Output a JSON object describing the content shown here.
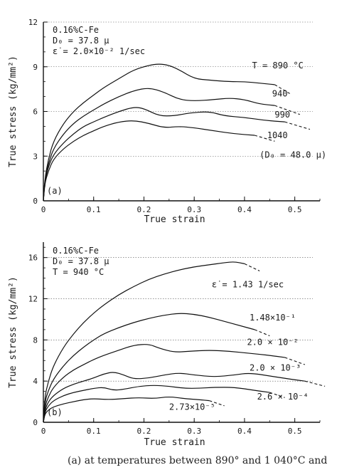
{
  "chart_data": [
    {
      "type": "line",
      "panel_label": "(a)",
      "xlabel": "True strain",
      "ylabel": "True stress (kg/mm²)",
      "xlim": [
        0,
        0.55
      ],
      "ylim": [
        0,
        12
      ],
      "xticks": [
        "0",
        "0.1",
        "0.2",
        "0.3",
        "0.4",
        "0.5"
      ],
      "yticks": [
        "0",
        "3",
        "6",
        "9",
        "12"
      ],
      "info": [
        "0.16%C-Fe",
        "D₀ = 37.8 μ",
        "ε̇ = 2.0×10⁻² 1/sec"
      ],
      "series": [
        {
          "name": "T = 890 °C",
          "x": [
            0,
            0.003,
            0.01,
            0.02,
            0.04,
            0.06,
            0.08,
            0.1,
            0.12,
            0.15,
            0.18,
            0.21,
            0.23,
            0.25,
            0.27,
            0.3,
            0.33,
            0.37,
            0.4,
            0.43,
            0.46
          ],
          "y": [
            0,
            1.5,
            2.8,
            4.0,
            5.2,
            6.0,
            6.6,
            7.1,
            7.6,
            8.2,
            8.8,
            9.1,
            9.2,
            9.1,
            8.8,
            8.2,
            8.1,
            8.0,
            8.0,
            7.9,
            7.8
          ],
          "dash_x": [
            0.46,
            0.49
          ],
          "dash_y": [
            7.8,
            7.2
          ]
        },
        {
          "name": "940",
          "x": [
            0,
            0.003,
            0.01,
            0.02,
            0.04,
            0.06,
            0.08,
            0.1,
            0.12,
            0.15,
            0.18,
            0.21,
            0.24,
            0.27,
            0.3,
            0.34,
            0.37,
            0.4,
            0.43,
            0.46
          ],
          "y": [
            0,
            1.4,
            2.5,
            3.5,
            4.5,
            5.2,
            5.7,
            6.1,
            6.5,
            7.0,
            7.4,
            7.6,
            7.3,
            6.8,
            6.7,
            6.8,
            6.9,
            6.8,
            6.5,
            6.4
          ],
          "dash_x": [
            0.46,
            0.51
          ],
          "dash_y": [
            6.4,
            5.8
          ]
        },
        {
          "name": "990",
          "x": [
            0,
            0.003,
            0.01,
            0.02,
            0.04,
            0.06,
            0.08,
            0.1,
            0.12,
            0.15,
            0.18,
            0.2,
            0.23,
            0.26,
            0.29,
            0.33,
            0.36,
            0.4,
            0.44,
            0.48
          ],
          "y": [
            0,
            1.3,
            2.3,
            3.1,
            3.9,
            4.5,
            5.0,
            5.3,
            5.6,
            6.0,
            6.3,
            6.2,
            5.7,
            5.7,
            5.9,
            6.0,
            5.7,
            5.6,
            5.4,
            5.3
          ],
          "dash_x": [
            0.48,
            0.53
          ],
          "dash_y": [
            5.3,
            4.8
          ]
        },
        {
          "name": "1040 (D₀ = 48.0 μ)",
          "x": [
            0,
            0.003,
            0.01,
            0.02,
            0.04,
            0.06,
            0.08,
            0.1,
            0.12,
            0.15,
            0.18,
            0.21,
            0.24,
            0.27,
            0.3,
            0.34,
            0.38,
            0.42
          ],
          "y": [
            0,
            1.2,
            2.0,
            2.8,
            3.5,
            4.0,
            4.4,
            4.7,
            5.0,
            5.3,
            5.4,
            5.2,
            4.9,
            5.0,
            4.9,
            4.7,
            4.5,
            4.4
          ],
          "dash_x": [
            0.42,
            0.46
          ],
          "dash_y": [
            4.4,
            4.0
          ]
        }
      ],
      "labels": [
        {
          "text": "T = 890 °C",
          "x": 0.415,
          "y": 8.9
        },
        {
          "text": "940",
          "x": 0.455,
          "y": 7.0
        },
        {
          "text": "990",
          "x": 0.46,
          "y": 5.6
        },
        {
          "text": "1040",
          "x": 0.445,
          "y": 4.2
        },
        {
          "text": "(D₀ = 48.0 μ)",
          "x": 0.43,
          "y": 2.9
        }
      ]
    },
    {
      "type": "line",
      "panel_label": "(b)",
      "xlabel": "True strain",
      "ylabel": "True stress (kg/mm²)",
      "xlim": [
        0,
        0.55
      ],
      "ylim": [
        0,
        17.5
      ],
      "xticks": [
        "0",
        "0.1",
        "0.2",
        "0.3",
        "0.4",
        "0.5"
      ],
      "yticks": [
        "0",
        "4",
        "8",
        "12",
        "16"
      ],
      "info": [
        "0.16%C-Fe",
        "D₀ = 37.8 μ",
        "T = 940 °C"
      ],
      "series": [
        {
          "name": "ε̇ = 1.43 1/sec",
          "x": [
            0,
            0.003,
            0.01,
            0.02,
            0.04,
            0.06,
            0.08,
            0.1,
            0.12,
            0.15,
            0.18,
            0.21,
            0.24,
            0.27,
            0.3,
            0.33,
            0.36,
            0.38,
            0.4
          ],
          "y": [
            0,
            2.5,
            4.0,
            5.5,
            7.3,
            8.6,
            9.7,
            10.6,
            11.4,
            12.4,
            13.2,
            13.9,
            14.4,
            14.8,
            15.1,
            15.3,
            15.5,
            15.6,
            15.4
          ],
          "dash_x": [
            0.4,
            0.43
          ],
          "dash_y": [
            15.4,
            14.7
          ]
        },
        {
          "name": "1.48×10⁻¹",
          "x": [
            0,
            0.003,
            0.01,
            0.02,
            0.04,
            0.06,
            0.08,
            0.1,
            0.12,
            0.15,
            0.18,
            0.21,
            0.24,
            0.27,
            0.3,
            0.33,
            0.36,
            0.39,
            0.42
          ],
          "y": [
            0,
            2.0,
            3.1,
            4.2,
            5.5,
            6.5,
            7.3,
            8.0,
            8.6,
            9.2,
            9.7,
            10.1,
            10.4,
            10.6,
            10.5,
            10.2,
            9.8,
            9.4,
            9.0
          ],
          "dash_x": [
            0.42,
            0.45
          ],
          "dash_y": [
            9.0,
            8.4
          ]
        },
        {
          "name": "2.0×10⁻²",
          "x": [
            0,
            0.003,
            0.01,
            0.02,
            0.04,
            0.06,
            0.08,
            0.1,
            0.12,
            0.15,
            0.18,
            0.21,
            0.23,
            0.26,
            0.29,
            0.33,
            0.37,
            0.41,
            0.45,
            0.48
          ],
          "y": [
            0,
            1.5,
            2.5,
            3.4,
            4.4,
            5.1,
            5.6,
            6.1,
            6.5,
            7.0,
            7.5,
            7.6,
            7.2,
            6.8,
            6.9,
            7.0,
            6.9,
            6.7,
            6.5,
            6.3
          ],
          "dash_x": [
            0.48,
            0.52
          ],
          "dash_y": [
            6.3,
            5.6
          ]
        },
        {
          "name": "2.0×10⁻³",
          "x": [
            0,
            0.003,
            0.01,
            0.02,
            0.04,
            0.06,
            0.08,
            0.1,
            0.12,
            0.14,
            0.16,
            0.18,
            0.21,
            0.24,
            0.27,
            0.3,
            0.34,
            0.38,
            0.41,
            0.45,
            0.49,
            0.52
          ],
          "y": [
            0,
            1.2,
            2.0,
            2.6,
            3.3,
            3.7,
            4.0,
            4.3,
            4.7,
            4.9,
            4.6,
            4.2,
            4.3,
            4.6,
            4.8,
            4.6,
            4.4,
            4.6,
            4.8,
            4.5,
            4.2,
            4.0
          ],
          "dash_x": [
            0.52,
            0.56
          ],
          "dash_y": [
            4.0,
            3.5
          ]
        },
        {
          "name": "2.6×10⁻⁴",
          "x": [
            0,
            0.003,
            0.01,
            0.02,
            0.04,
            0.06,
            0.08,
            0.1,
            0.12,
            0.14,
            0.16,
            0.19,
            0.22,
            0.25,
            0.28,
            0.31,
            0.34,
            0.38,
            0.42,
            0.45
          ],
          "y": [
            0,
            1.0,
            1.6,
            2.1,
            2.6,
            2.9,
            3.1,
            3.3,
            3.4,
            3.1,
            3.2,
            3.5,
            3.6,
            3.5,
            3.3,
            3.3,
            3.4,
            3.4,
            3.1,
            2.9
          ],
          "dash_x": [
            0.45,
            0.48
          ],
          "dash_y": [
            2.9,
            2.4
          ]
        },
        {
          "name": "2.73×10⁻⁵",
          "x": [
            0,
            0.003,
            0.01,
            0.02,
            0.04,
            0.06,
            0.08,
            0.1,
            0.13,
            0.16,
            0.19,
            0.22,
            0.25,
            0.28,
            0.31,
            0.33
          ],
          "y": [
            0,
            0.8,
            1.2,
            1.5,
            1.8,
            2.0,
            2.2,
            2.3,
            2.2,
            2.3,
            2.4,
            2.3,
            2.5,
            2.3,
            2.2,
            2.1
          ],
          "dash_x": [
            0.33,
            0.36
          ],
          "dash_y": [
            2.1,
            1.6
          ]
        }
      ],
      "labels": [
        {
          "text": "ε̇ = 1.43   1/sec",
          "x": 0.335,
          "y": 13.1
        },
        {
          "text": "1.48×10⁻¹",
          "x": 0.41,
          "y": 9.9
        },
        {
          "text": "2.0 × 10⁻²",
          "x": 0.405,
          "y": 7.5
        },
        {
          "text": "2.0 × 10⁻³",
          "x": 0.41,
          "y": 5.0
        },
        {
          "text": "2.6 × 10⁻⁴",
          "x": 0.425,
          "y": 2.2
        },
        {
          "text": "2.73×10⁻⁵",
          "x": 0.25,
          "y": 1.2
        }
      ]
    }
  ],
  "caption": "(a)   at temperatures between 890° and 1 040°C and"
}
